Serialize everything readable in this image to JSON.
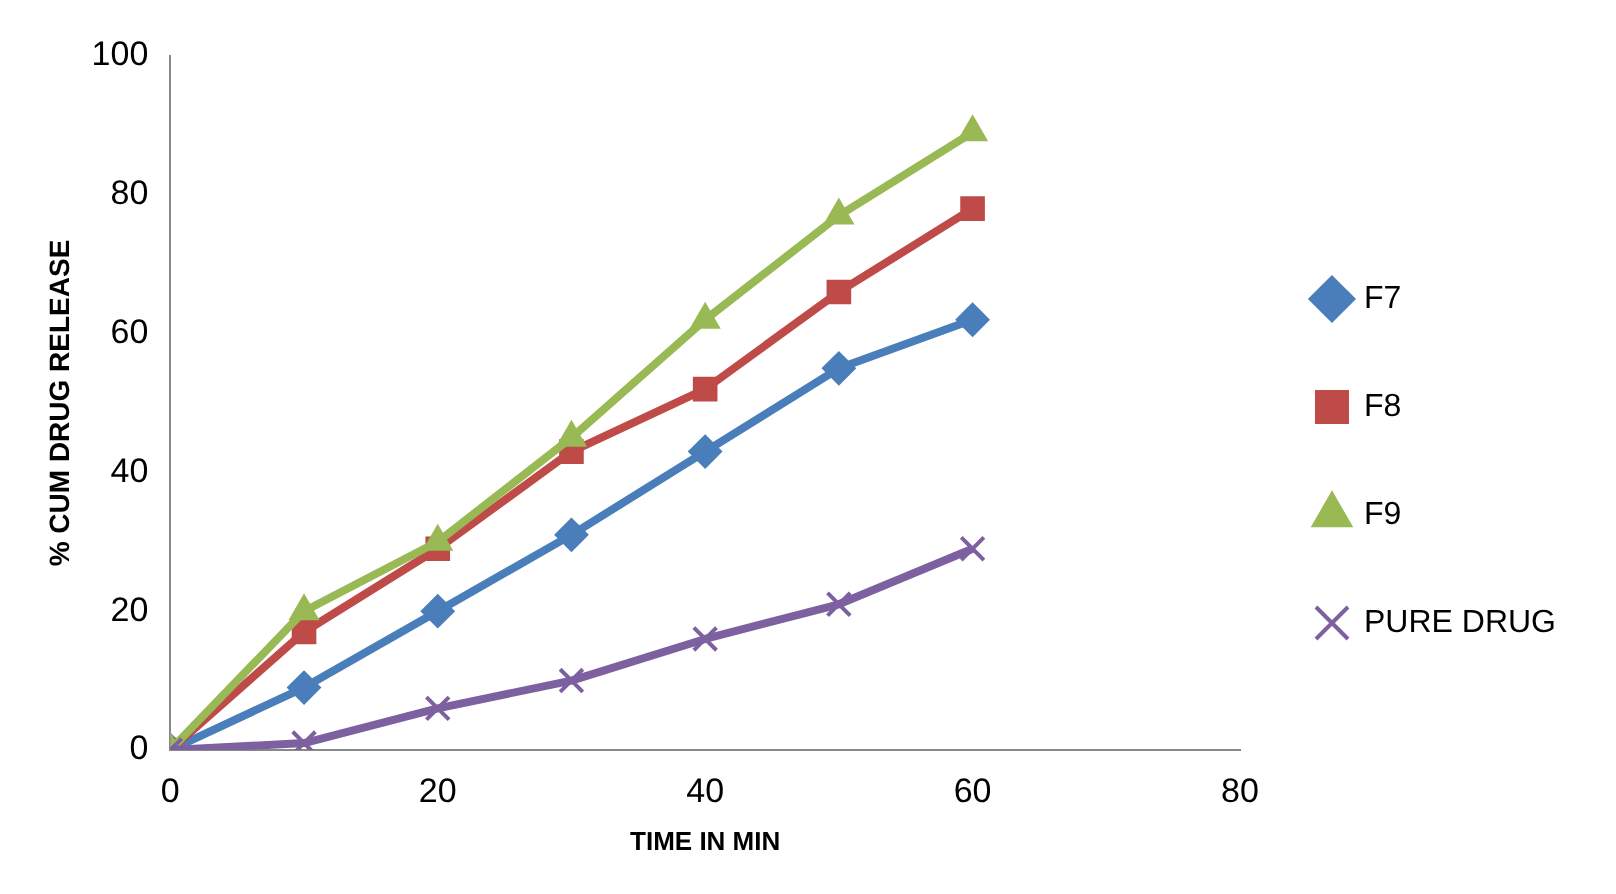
{
  "chart_data": {
    "type": "line",
    "xlabel": "TIME IN MIN",
    "ylabel": "% CUM DRUG RELEASE",
    "x": [
      0,
      10,
      20,
      30,
      40,
      50,
      60
    ],
    "series": [
      {
        "name": "F7",
        "color": "#4a7ebb",
        "marker": "diamond",
        "values": [
          0,
          9,
          20,
          31,
          43,
          55,
          62
        ]
      },
      {
        "name": "F8",
        "color": "#be4b48",
        "marker": "square",
        "values": [
          0,
          17,
          29,
          43,
          52,
          66,
          78
        ]
      },
      {
        "name": "F9",
        "color": "#98b954",
        "marker": "triangle",
        "values": [
          0,
          20,
          30,
          45,
          62,
          77,
          89
        ]
      },
      {
        "name": "PURE DRUG",
        "color": "#7d60a0",
        "marker": "cross",
        "values": [
          0,
          1,
          6,
          10,
          16,
          21,
          29
        ]
      }
    ],
    "xlim": [
      0,
      80
    ],
    "xticks": [
      0,
      20,
      40,
      60,
      80
    ],
    "ylim": [
      0,
      100
    ],
    "yticks": [
      0,
      20,
      40,
      60,
      80,
      100
    ],
    "grid": false,
    "legend": "right"
  }
}
